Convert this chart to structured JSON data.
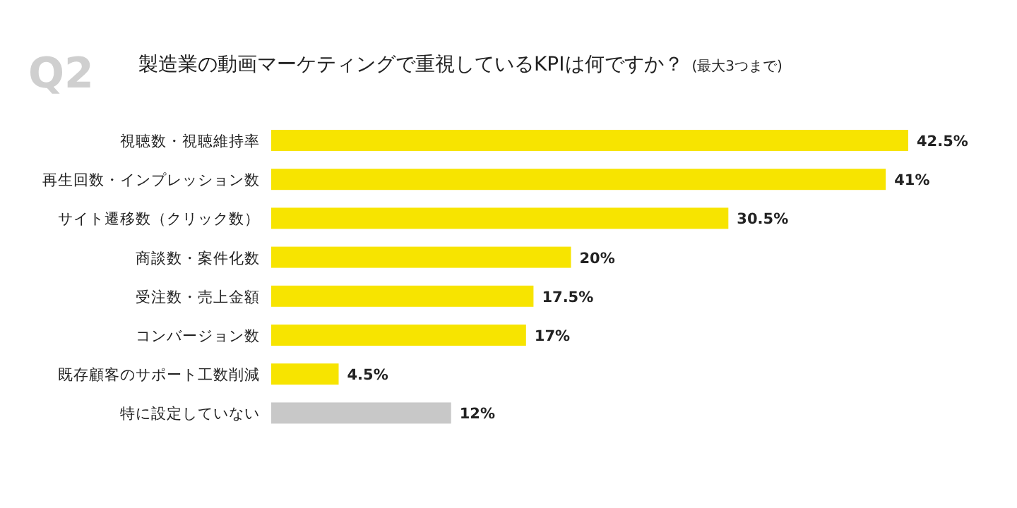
{
  "chart_data": {
    "type": "bar",
    "orientation": "horizontal",
    "title": "製造業の動画マーケティングで重視しているKPIは何ですか？",
    "subtitle": "(最大3つまで)",
    "annotations": [
      "Q2"
    ],
    "categories": [
      "視聴数・視聴維持率",
      "再生回数・インプレッション数",
      "サイト遷移数（クリック数）",
      "商談数・案件化数",
      "受注数・売上金額",
      "コンバージョン数",
      "既存顧客のサポート工数削減",
      "特に設定していない"
    ],
    "values": [
      42.5,
      41,
      30.5,
      20,
      17.5,
      17,
      4.5,
      12
    ],
    "value_labels": [
      "42.5%",
      "41%",
      "30.5%",
      "20%",
      "17.5%",
      "17%",
      "4.5%",
      "12%"
    ],
    "colors": [
      "#f7e400",
      "#f7e400",
      "#f7e400",
      "#f7e400",
      "#f7e400",
      "#f7e400",
      "#f7e400",
      "#c8c8c8"
    ]
  }
}
